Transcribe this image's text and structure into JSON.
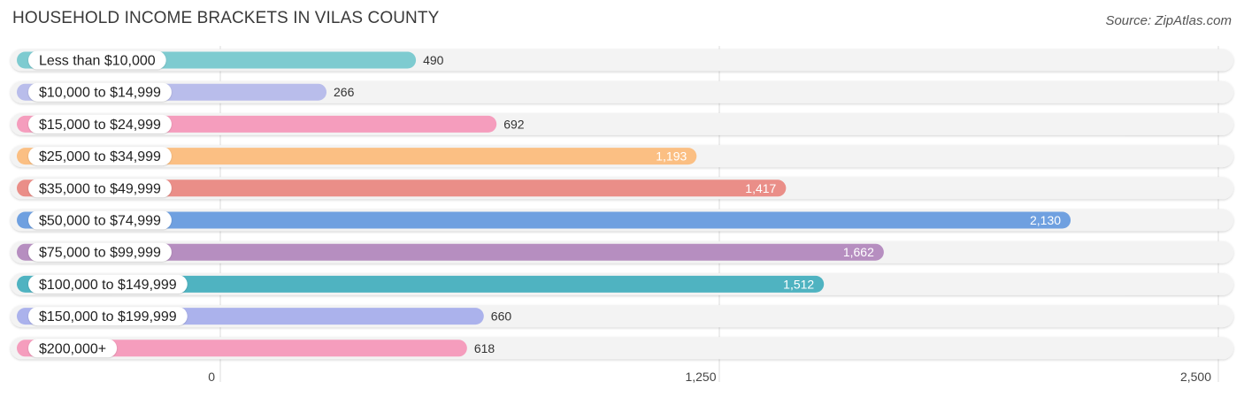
{
  "header": {
    "title": "HOUSEHOLD INCOME BRACKETS IN VILAS COUNTY",
    "source": "Source: ZipAtlas.com"
  },
  "chart_data": {
    "type": "bar",
    "orientation": "horizontal",
    "title": "HOUSEHOLD INCOME BRACKETS IN VILAS COUNTY",
    "xlabel": "",
    "ylabel": "",
    "categories": [
      "Less than $10,000",
      "$10,000 to $14,999",
      "$15,000 to $24,999",
      "$25,000 to $34,999",
      "$35,000 to $49,999",
      "$50,000 to $74,999",
      "$75,000 to $99,999",
      "$100,000 to $149,999",
      "$150,000 to $199,999",
      "$200,000+"
    ],
    "values": [
      490,
      266,
      692,
      1193,
      1417,
      2130,
      1662,
      1512,
      660,
      618
    ],
    "value_labels": [
      "490",
      "266",
      "692",
      "1,193",
      "1,417",
      "2,130",
      "1,662",
      "1,512",
      "660",
      "618"
    ],
    "colors": [
      "#7ecbd0",
      "#b9bdeb",
      "#f59dbd",
      "#fbbf83",
      "#ea8e88",
      "#6fa0e0",
      "#b68ec0",
      "#4fb3c1",
      "#abb2ec",
      "#f59dbd"
    ],
    "xlim": [
      0,
      2500
    ],
    "ticks": [
      0,
      1250,
      2500
    ],
    "tick_labels": [
      "0",
      "1,250",
      "2,500"
    ],
    "grid": true,
    "legend": "none"
  }
}
